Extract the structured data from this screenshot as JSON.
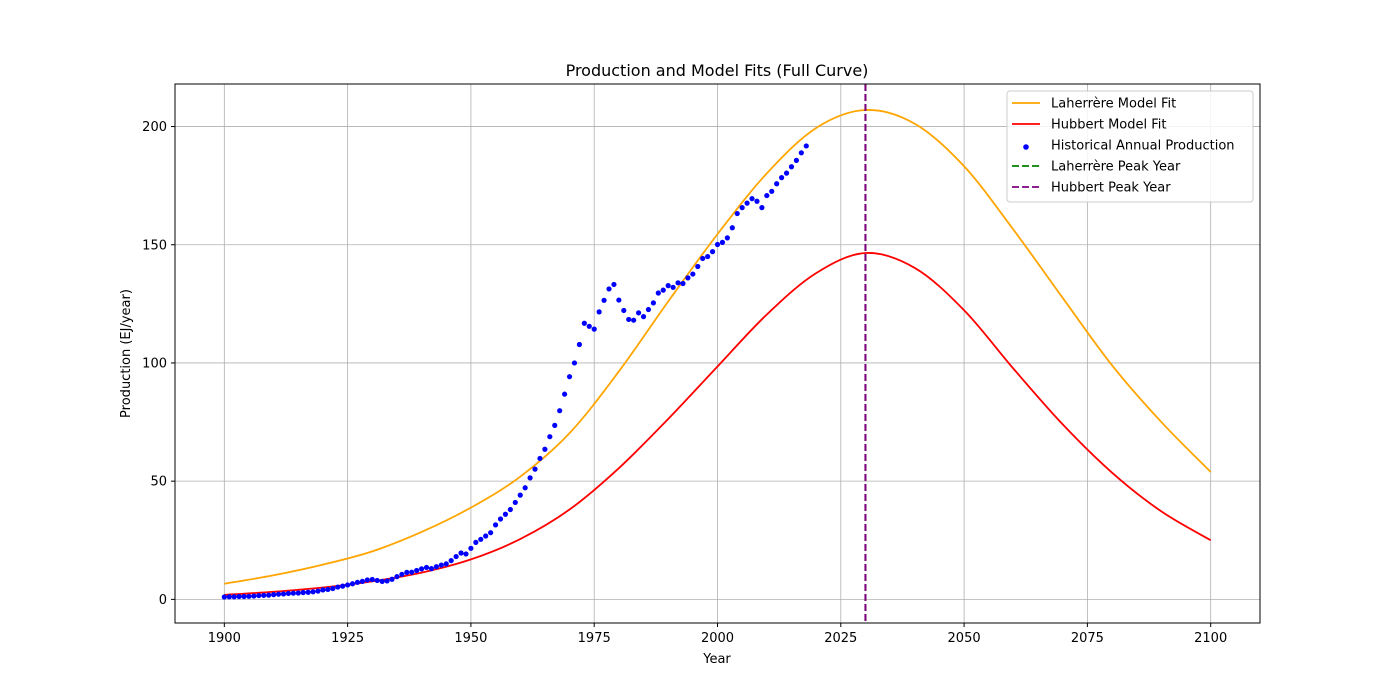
{
  "chart_data": {
    "type": "line",
    "title": "Production and Model Fits (Full Curve)",
    "xlabel": "Year",
    "ylabel": "Production (EJ/year)",
    "xlim": [
      1890,
      2110
    ],
    "ylim": [
      -10,
      218
    ],
    "xticks": [
      1900,
      1925,
      1950,
      1975,
      2000,
      2025,
      2050,
      2075,
      2100
    ],
    "yticks": [
      0,
      50,
      100,
      150,
      200
    ],
    "grid": true,
    "legend_position": "upper right",
    "series": [
      {
        "name": "Laherrère Model Fit",
        "kind": "line",
        "color": "#ffa500",
        "peak_year": 2030,
        "peak_value": 207,
        "x": [
          1900,
          1910,
          1920,
          1930,
          1940,
          1950,
          1960,
          1970,
          1980,
          1990,
          2000,
          2010,
          2020,
          2030,
          2040,
          2050,
          2060,
          2070,
          2080,
          2090,
          2100
        ],
        "y": [
          6.6,
          10.2,
          14.7,
          20.3,
          28.5,
          38.8,
          51.9,
          70.3,
          96.4,
          126.0,
          154.5,
          180.2,
          199.4,
          207.0,
          201.2,
          183.2,
          156.4,
          127.5,
          99.0,
          75.0,
          53.9
        ]
      },
      {
        "name": "Hubbert Model Fit",
        "kind": "line",
        "color": "#ff0000",
        "peak_year": 2030,
        "peak_value": 146.5,
        "x": [
          1900,
          1910,
          1920,
          1930,
          1940,
          1950,
          1960,
          1970,
          1980,
          1990,
          2000,
          2010,
          2020,
          2030,
          2040,
          2050,
          2060,
          2070,
          2080,
          2090,
          2100
        ],
        "y": [
          1.9,
          3.2,
          5.0,
          7.6,
          11.3,
          16.9,
          25.5,
          38.0,
          55.5,
          76.3,
          98.5,
          120.5,
          138.0,
          146.5,
          140.2,
          122.3,
          97.6,
          74.0,
          53.6,
          37.2,
          25.0
        ]
      },
      {
        "name": "Historical Annual Production",
        "kind": "scatter",
        "color": "#0000ff",
        "x": [
          1900,
          1901,
          1902,
          1903,
          1904,
          1905,
          1906,
          1907,
          1908,
          1909,
          1910,
          1911,
          1912,
          1913,
          1914,
          1915,
          1916,
          1917,
          1918,
          1919,
          1920,
          1921,
          1922,
          1923,
          1924,
          1925,
          1926,
          1927,
          1928,
          1929,
          1930,
          1931,
          1932,
          1933,
          1934,
          1935,
          1936,
          1937,
          1938,
          1939,
          1940,
          1941,
          1942,
          1943,
          1944,
          1945,
          1946,
          1947,
          1948,
          1949,
          1950,
          1951,
          1952,
          1953,
          1954,
          1955,
          1956,
          1957,
          1958,
          1959,
          1960,
          1961,
          1962,
          1963,
          1964,
          1965,
          1966,
          1967,
          1968,
          1969,
          1970,
          1971,
          1972,
          1973,
          1974,
          1975,
          1976,
          1977,
          1978,
          1979,
          1980,
          1981,
          1982,
          1983,
          1984,
          1985,
          1986,
          1987,
          1988,
          1989,
          1990,
          1991,
          1992,
          1993,
          1994,
          1995,
          1996,
          1997,
          1998,
          1999,
          2000,
          2001,
          2002,
          2003,
          2004,
          2005,
          2006,
          2007,
          2008,
          2009,
          2010,
          2011,
          2012,
          2013,
          2014,
          2015,
          2016,
          2017,
          2018
        ],
        "y": [
          1.0,
          1.1,
          1.1,
          1.2,
          1.2,
          1.3,
          1.4,
          1.6,
          1.7,
          1.8,
          2.0,
          2.2,
          2.3,
          2.5,
          2.6,
          2.7,
          2.9,
          3.0,
          3.2,
          3.5,
          4.0,
          4.2,
          4.6,
          5.2,
          5.6,
          6.1,
          6.6,
          7.2,
          7.6,
          8.2,
          8.4,
          8.0,
          7.6,
          7.8,
          8.5,
          9.6,
          10.6,
          11.4,
          11.5,
          12.2,
          12.9,
          13.5,
          13.0,
          13.8,
          14.5,
          15.0,
          16.4,
          18.1,
          19.6,
          19.2,
          21.6,
          24.1,
          25.4,
          26.8,
          28.2,
          31.5,
          34.0,
          36.0,
          38.0,
          41.0,
          44.1,
          47.2,
          51.4,
          55.1,
          59.6,
          63.5,
          68.8,
          73.6,
          79.8,
          86.8,
          94.2,
          100.0,
          107.8,
          116.8,
          115.5,
          114.3,
          121.6,
          126.5,
          131.3,
          133.2,
          126.6,
          122.2,
          118.4,
          118.1,
          121.2,
          119.6,
          122.6,
          125.4,
          129.6,
          130.8,
          132.7,
          132.0,
          133.9,
          133.6,
          136.0,
          137.6,
          140.8,
          144.2,
          145.0,
          147.1,
          150.1,
          151.0,
          152.9,
          157.2,
          163.2,
          165.7,
          167.6,
          169.5,
          168.4,
          165.7,
          170.8,
          172.6,
          175.8,
          178.4,
          180.3,
          183.0,
          185.7,
          188.9,
          191.8
        ]
      },
      {
        "name": "Laherrère Peak Year",
        "kind": "vline",
        "color": "#008000",
        "x": 2030
      },
      {
        "name": "Hubbert Peak Year",
        "kind": "vline",
        "color": "#800080",
        "x": 2030
      }
    ]
  }
}
